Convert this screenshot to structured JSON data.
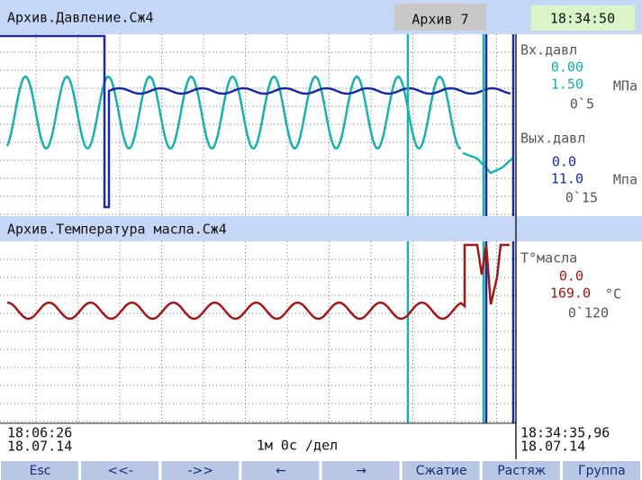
{
  "header": {
    "title": "Архив.Давление.Сж4",
    "archive": "Архив 7",
    "time": "18:34:50"
  },
  "panel1": {
    "title": "Архив.Давление.Сж4",
    "ch1": {
      "name": "Вх.давл",
      "min": "0.00",
      "max": "1.50",
      "unit": "МПа",
      "scale": "0`5"
    },
    "ch2": {
      "name": "Вых.давл",
      "min": "0.0",
      "max": "11.0",
      "unit": "Мпа",
      "scale": "0`15"
    }
  },
  "panel2": {
    "title": "Архив.Температура масла.Сж4",
    "ch1": {
      "name": "Т°масла",
      "min": "0.0",
      "max": "169.0",
      "unit": "°C",
      "scale": "0`120"
    }
  },
  "footer": {
    "start_time": "18:06:26",
    "start_date": "18.07.14",
    "division": "1м 0с /дел",
    "end_time": "18:34:35,96",
    "end_date": "18.07.14"
  },
  "buttons": [
    "Esc",
    "<<-",
    "->>",
    "←",
    "→",
    "Сжатие",
    "Растяж",
    "Группа"
  ]
}
